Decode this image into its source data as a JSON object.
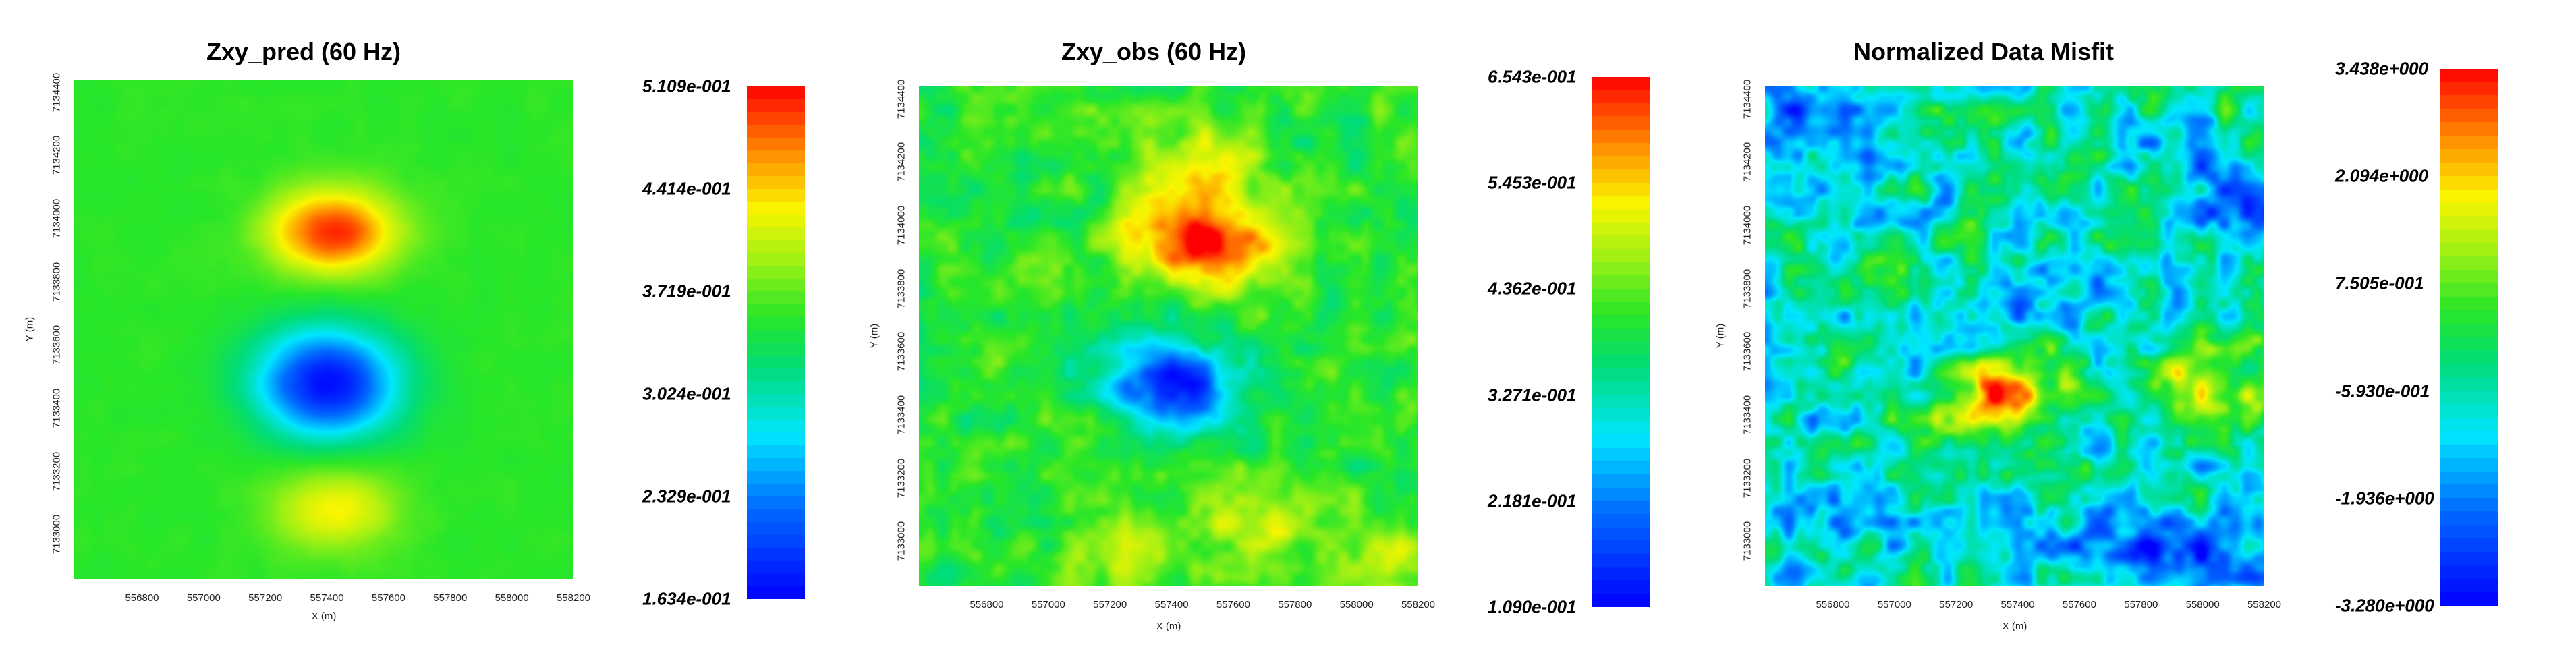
{
  "chart_data": [
    {
      "type": "heatmap",
      "title": "Zxy_pred (60 Hz)",
      "xlabel": "X (m)",
      "ylabel": "Y (m)",
      "x_ticks": [
        "556800",
        "557000",
        "557200",
        "557400",
        "557600",
        "557800",
        "558000",
        "558200"
      ],
      "y_ticks": [
        "7133000",
        "7133200",
        "7133400",
        "7133600",
        "7133800",
        "7134000",
        "7134200",
        "7134400"
      ],
      "xlim": [
        556580,
        558200
      ],
      "ylim": [
        7132860,
        7134440
      ],
      "colorbar": {
        "min": 0.1634,
        "max": 0.5109,
        "labels": [
          "5.109e-001",
          "4.414e-001",
          "3.719e-001",
          "3.024e-001",
          "2.329e-001",
          "1.634e-001"
        ]
      },
      "features": [
        {
          "kind": "high",
          "x": 557420,
          "y": 7133960,
          "value": 0.5
        },
        {
          "kind": "low",
          "x": 557400,
          "y": 7133480,
          "value": 0.17
        },
        {
          "kind": "high",
          "x": 557420,
          "y": 7133080,
          "value": 0.43
        }
      ],
      "background_value": 0.355
    },
    {
      "type": "heatmap",
      "title": "Zxy_obs (60 Hz)",
      "xlabel": "X (m)",
      "ylabel": "Y (m)",
      "x_ticks": [
        "556800",
        "557000",
        "557200",
        "557400",
        "557600",
        "557800",
        "558000",
        "558200"
      ],
      "y_ticks": [
        "7133000",
        "7133200",
        "7133400",
        "7133600",
        "7133800",
        "7134000",
        "7134200",
        "7134400"
      ],
      "xlim": [
        556580,
        558200
      ],
      "ylim": [
        7132860,
        7134440
      ],
      "colorbar": {
        "min": 0.109,
        "max": 0.6543,
        "labels": [
          "6.543e-001",
          "5.453e-001",
          "4.362e-001",
          "3.271e-001",
          "2.181e-001",
          "1.090e-001"
        ]
      },
      "features": [
        {
          "kind": "high",
          "x": 557450,
          "y": 7133980,
          "value": 0.6
        },
        {
          "kind": "high",
          "x": 557600,
          "y": 7133900,
          "value": 0.52
        },
        {
          "kind": "high",
          "x": 557500,
          "y": 7134200,
          "value": 0.5
        },
        {
          "kind": "low",
          "x": 557400,
          "y": 7133500,
          "value": 0.13
        },
        {
          "kind": "high",
          "x": 557260,
          "y": 7132990,
          "value": 0.5
        },
        {
          "kind": "high",
          "x": 557700,
          "y": 7133060,
          "value": 0.5
        },
        {
          "kind": "high",
          "x": 558100,
          "y": 7132930,
          "value": 0.48
        }
      ],
      "background_value": 0.4
    },
    {
      "type": "heatmap",
      "title": "Normalized Data Misfit",
      "xlabel": "X (m)",
      "ylabel": "Y (m)",
      "x_ticks": [
        "556800",
        "557000",
        "557200",
        "557400",
        "557600",
        "557800",
        "558000",
        "558200"
      ],
      "y_ticks": [
        "7133000",
        "7133200",
        "7133400",
        "7133600",
        "7133800",
        "7134000",
        "7134200",
        "7134400"
      ],
      "xlim": [
        556580,
        558200
      ],
      "ylim": [
        7132860,
        7134440
      ],
      "colorbar": {
        "min": -3.28,
        "max": 3.438,
        "labels": [
          "3.438e+000",
          "2.094e+000",
          "7.505e-001",
          "-5.930e-001",
          "-1.936e+000",
          "-3.280e+000"
        ]
      },
      "features": [
        {
          "kind": "high",
          "x": 557360,
          "y": 7133460,
          "value": 3.0
        },
        {
          "kind": "high",
          "x": 558020,
          "y": 7133500,
          "value": 1.3
        },
        {
          "kind": "low",
          "x": 556800,
          "y": 7134350,
          "value": -2.6
        },
        {
          "kind": "low",
          "x": 558100,
          "y": 7134100,
          "value": -2.2
        },
        {
          "kind": "low",
          "x": 558050,
          "y": 7132950,
          "value": -2.4
        },
        {
          "kind": "low",
          "x": 557700,
          "y": 7132980,
          "value": -2.0
        },
        {
          "kind": "low",
          "x": 556700,
          "y": 7133100,
          "value": -1.6
        },
        {
          "kind": "low",
          "x": 557500,
          "y": 7133800,
          "value": -1.4
        }
      ],
      "background_value": -0.7
    }
  ]
}
